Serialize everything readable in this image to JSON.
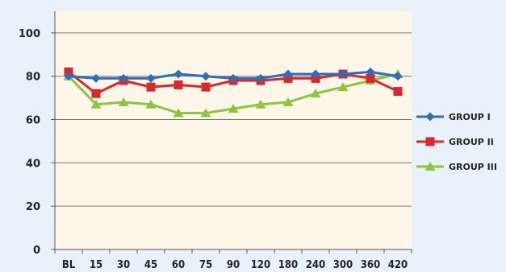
{
  "chart_data": {
    "type": "line",
    "categories": [
      "BL",
      "15",
      "30",
      "45",
      "60",
      "75",
      "90",
      "120",
      "180",
      "240",
      "300",
      "360",
      "420"
    ],
    "ylim": [
      0,
      110
    ],
    "yticks": [
      0,
      20,
      40,
      60,
      80,
      100
    ],
    "grid": true,
    "legend_position": "right",
    "series": [
      {
        "name": "GROUP I",
        "color": "#2e6db8",
        "marker": "diamond",
        "values": [
          80,
          79,
          79,
          79,
          81,
          80,
          79,
          79,
          81,
          81,
          81,
          82,
          80
        ]
      },
      {
        "name": "GROUP II",
        "color": "#d9272e",
        "marker": "square",
        "values": [
          82,
          72,
          78,
          75,
          76,
          75,
          78,
          78,
          79,
          79,
          81,
          79,
          73
        ]
      },
      {
        "name": "GROUP III",
        "color": "#8cc63f",
        "marker": "triangle",
        "values": [
          80,
          67,
          68,
          67,
          63,
          63,
          65,
          67,
          68,
          72,
          75,
          78,
          81
        ]
      }
    ]
  }
}
